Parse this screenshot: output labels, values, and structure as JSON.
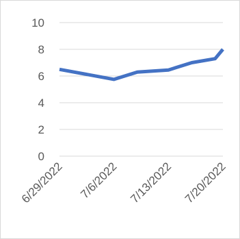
{
  "chart_data": {
    "type": "line",
    "title": "",
    "xlabel": "",
    "ylabel": "",
    "ylim": [
      0,
      10
    ],
    "y_ticks": [
      "0",
      "2",
      "4",
      "6",
      "8",
      "10"
    ],
    "x_range": [
      "6/29/2022",
      "7/20/2022"
    ],
    "x_tick_labels": [
      "6/29/2022",
      "7/6/2022",
      "7/13/2022",
      "7/20/2022"
    ],
    "grid": "horizontal",
    "legend": "none",
    "series": [
      {
        "color": "#4472c4",
        "points": [
          {
            "x": "6/29/2022",
            "y": 6.5
          },
          {
            "x": "7/6/2022",
            "y": 5.75
          },
          {
            "x": "7/9/2022",
            "y": 6.3
          },
          {
            "x": "7/13/2022",
            "y": 6.45
          },
          {
            "x": "7/16/2022",
            "y": 7.0
          },
          {
            "x": "7/19/2022",
            "y": 7.3
          },
          {
            "x": "7/20/2022",
            "y": 8.0
          }
        ]
      }
    ]
  }
}
